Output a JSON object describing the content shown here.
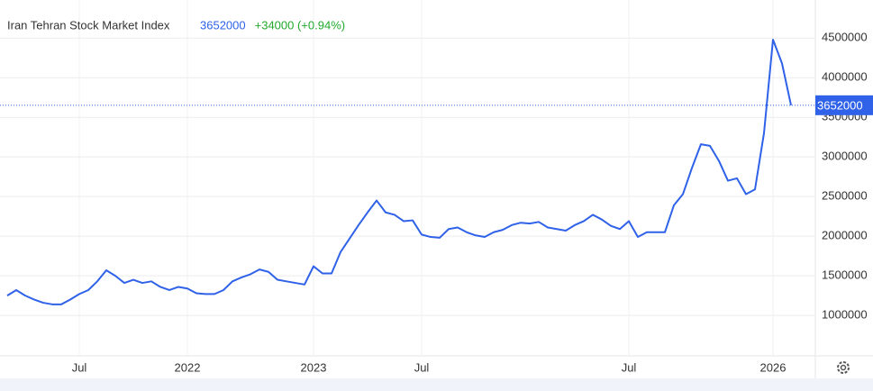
{
  "chart_data": {
    "type": "line",
    "title": "Iran Tehran Stock Market Index",
    "last": 3652000,
    "change": "+34000 (+0.94%)",
    "categories": [
      null,
      null,
      null,
      null,
      null,
      null,
      null,
      null,
      "Jul",
      null,
      null,
      null,
      null,
      null,
      null,
      null,
      null,
      null,
      null,
      null,
      "2022",
      null,
      null,
      null,
      null,
      null,
      null,
      null,
      null,
      null,
      null,
      null,
      null,
      null,
      "2023",
      null,
      null,
      null,
      null,
      null,
      null,
      null,
      null,
      null,
      null,
      null,
      "Jul",
      null,
      null,
      null,
      null,
      null,
      null,
      null,
      null,
      null,
      null,
      null,
      null,
      null,
      null,
      null,
      null,
      null,
      null,
      null,
      null,
      null,
      null,
      "Jul",
      null,
      null,
      null,
      null,
      null,
      null,
      null,
      null,
      null,
      null,
      null,
      null,
      null,
      null,
      null,
      "2026",
      null,
      null
    ],
    "series": [
      {
        "name": "Iran Tehran Stock Market Index",
        "color": "#2f62e8",
        "values": [
          1250000,
          1320000,
          1250000,
          1200000,
          1160000,
          1140000,
          1140000,
          1200000,
          1270000,
          1320000,
          1430000,
          1570000,
          1500000,
          1410000,
          1450000,
          1410000,
          1430000,
          1360000,
          1320000,
          1360000,
          1340000,
          1280000,
          1270000,
          1270000,
          1320000,
          1430000,
          1480000,
          1520000,
          1580000,
          1550000,
          1450000,
          1430000,
          1410000,
          1390000,
          1620000,
          1530000,
          1530000,
          1800000,
          1970000,
          2140000,
          2300000,
          2450000,
          2300000,
          2270000,
          2190000,
          2200000,
          2020000,
          1990000,
          1980000,
          2090000,
          2110000,
          2050000,
          2010000,
          1990000,
          2050000,
          2080000,
          2140000,
          2170000,
          2160000,
          2180000,
          2110000,
          2090000,
          2070000,
          2140000,
          2190000,
          2270000,
          2210000,
          2130000,
          2090000,
          2190000,
          1990000,
          2050000,
          2050000,
          2050000,
          2390000,
          2530000,
          2860000,
          3160000,
          3140000,
          2950000,
          2700000,
          2730000,
          2530000,
          2590000,
          3300000,
          4480000,
          4180000,
          3652000
        ]
      }
    ],
    "ylim": [
      490000,
      4980000
    ],
    "yticks": [
      1000000,
      1500000,
      2000000,
      2500000,
      3000000,
      3500000,
      4000000,
      4500000
    ],
    "grid": true
  }
}
